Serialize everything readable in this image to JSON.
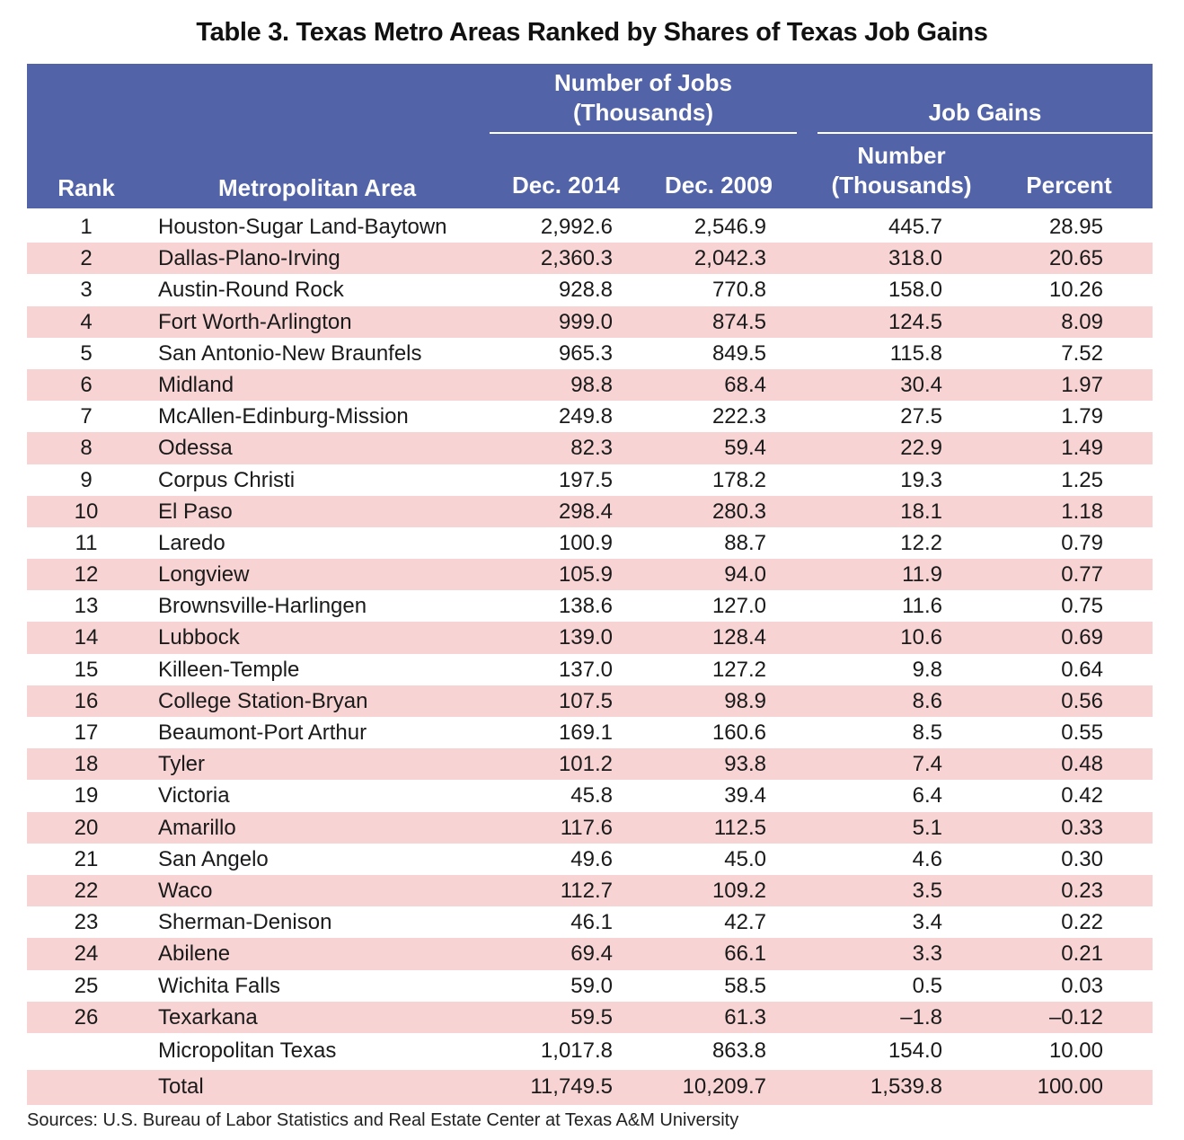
{
  "title": "Table 3. Texas Metro Areas Ranked by Shares of Texas Job Gains",
  "header": {
    "group_jobs": [
      "Number of Jobs",
      "(Thousands)"
    ],
    "group_gains": "Job Gains",
    "rank": "Rank",
    "area": "Metropolitan Area",
    "dec2014": "Dec. 2014",
    "dec2009": "Dec. 2009",
    "number": [
      "Number",
      "(Thousands)"
    ],
    "percent": "Percent"
  },
  "colors": {
    "header_bg": "#5263a8",
    "stripe": "#f7d4d3"
  },
  "rows": [
    [
      "1",
      "Houston-Sugar Land-Baytown",
      "2,992.6",
      "2,546.9",
      "445.7",
      "28.95"
    ],
    [
      "2",
      "Dallas-Plano-Irving",
      "2,360.3",
      "2,042.3",
      "318.0",
      "20.65"
    ],
    [
      "3",
      "Austin-Round Rock",
      "928.8",
      "770.8",
      "158.0",
      "10.26"
    ],
    [
      "4",
      "Fort Worth-Arlington",
      "999.0",
      "874.5",
      "124.5",
      "8.09"
    ],
    [
      "5",
      "San Antonio-New Braunfels",
      "965.3",
      "849.5",
      "115.8",
      "7.52"
    ],
    [
      "6",
      "Midland",
      "98.8",
      "68.4",
      "30.4",
      "1.97"
    ],
    [
      "7",
      "McAllen-Edinburg-Mission",
      "249.8",
      "222.3",
      "27.5",
      "1.79"
    ],
    [
      "8",
      "Odessa",
      "82.3",
      "59.4",
      "22.9",
      "1.49"
    ],
    [
      "9",
      "Corpus Christi",
      "197.5",
      "178.2",
      "19.3",
      "1.25"
    ],
    [
      "10",
      "El Paso",
      "298.4",
      "280.3",
      "18.1",
      "1.18"
    ],
    [
      "11",
      "Laredo",
      "100.9",
      "88.7",
      "12.2",
      "0.79"
    ],
    [
      "12",
      "Longview",
      "105.9",
      "94.0",
      "11.9",
      "0.77"
    ],
    [
      "13",
      "Brownsville-Harlingen",
      "138.6",
      "127.0",
      "11.6",
      "0.75"
    ],
    [
      "14",
      "Lubbock",
      "139.0",
      "128.4",
      "10.6",
      "0.69"
    ],
    [
      "15",
      "Killeen-Temple",
      "137.0",
      "127.2",
      "9.8",
      "0.64"
    ],
    [
      "16",
      "College Station-Bryan",
      "107.5",
      "98.9",
      "8.6",
      "0.56"
    ],
    [
      "17",
      "Beaumont-Port Arthur",
      "169.1",
      "160.6",
      "8.5",
      "0.55"
    ],
    [
      "18",
      "Tyler",
      "101.2",
      "93.8",
      "7.4",
      "0.48"
    ],
    [
      "19",
      "Victoria",
      "45.8",
      "39.4",
      "6.4",
      "0.42"
    ],
    [
      "20",
      "Amarillo",
      "117.6",
      "112.5",
      "5.1",
      "0.33"
    ],
    [
      "21",
      "San Angelo",
      "49.6",
      "45.0",
      "4.6",
      "0.30"
    ],
    [
      "22",
      "Waco",
      "112.7",
      "109.2",
      "3.5",
      "0.23"
    ],
    [
      "23",
      "Sherman-Denison",
      "46.1",
      "42.7",
      "3.4",
      "0.22"
    ],
    [
      "24",
      "Abilene",
      "69.4",
      "66.1",
      "3.3",
      "0.21"
    ],
    [
      "25",
      "Wichita Falls",
      "59.0",
      "58.5",
      "0.5",
      "0.03"
    ],
    [
      "26",
      "Texarkana",
      "59.5",
      "61.3",
      "–1.8",
      "–0.12"
    ],
    [
      "",
      "Micropolitan Texas",
      "1,017.8",
      "863.8",
      "154.0",
      "10.00"
    ],
    [
      "",
      "Total",
      "11,749.5",
      "10,209.7",
      "1,539.8",
      "100.00"
    ]
  ],
  "source": "Sources: U.S. Bureau of Labor Statistics and Real Estate Center at Texas A&M University"
}
